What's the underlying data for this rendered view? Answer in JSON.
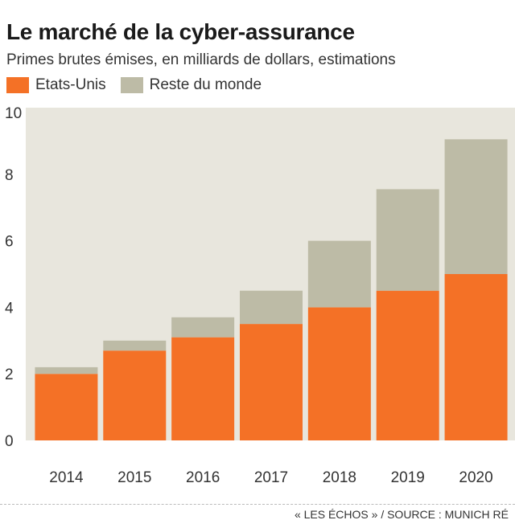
{
  "chart_data": {
    "type": "bar",
    "stacked": true,
    "title": "Le marché de la cyber-assurance",
    "subtitle": "Primes brutes émises, en milliards de dollars, estimations",
    "categories": [
      "2014",
      "2015",
      "2016",
      "2017",
      "2018",
      "2019",
      "2020"
    ],
    "series": [
      {
        "name": "Etats-Unis",
        "color": "#f47126",
        "values": [
          2.0,
          2.7,
          3.1,
          3.5,
          4.0,
          4.5,
          5.0
        ]
      },
      {
        "name": "Reste du monde",
        "color": "#bdbba6",
        "values": [
          0.2,
          0.3,
          0.6,
          1.0,
          2.0,
          3.05,
          4.05
        ]
      }
    ],
    "ylim": [
      0,
      10
    ],
    "yticks": [
      "0",
      "2",
      "4",
      "6",
      "8",
      "10"
    ],
    "xlabel": "",
    "ylabel": "",
    "plot_background": "#e8e6dd",
    "grid": false,
    "legend_position": "top-left"
  },
  "source": "« LES ÉCHOS » / SOURCE : MUNICH RÉ"
}
